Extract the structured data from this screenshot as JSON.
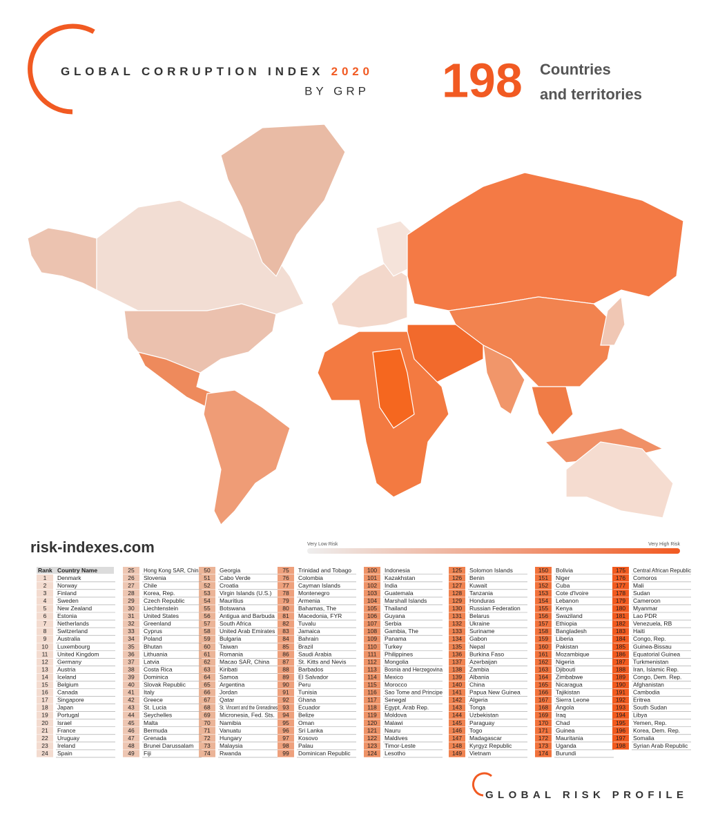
{
  "header": {
    "title": "GLOBAL CORRUPTION INDEX",
    "year": "2020",
    "subtitle": "BY GRP",
    "count": 198,
    "count_label": [
      "Countries",
      "and territories"
    ]
  },
  "website": "risk-indexes.com",
  "legend": {
    "low": "Very Low Risk",
    "high": "Very High Risk"
  },
  "table": {
    "header": [
      "Rank",
      "Country Name"
    ],
    "columns": [
      {
        "color": "#f3dbcf",
        "rows": [
          [
            1,
            "Denmark"
          ],
          [
            2,
            "Norway"
          ],
          [
            3,
            "Finland"
          ],
          [
            4,
            "Sweden"
          ],
          [
            5,
            "New Zealand"
          ],
          [
            6,
            "Estonia"
          ],
          [
            7,
            "Netherlands"
          ],
          [
            8,
            "Switzerland"
          ],
          [
            9,
            "Australia"
          ],
          [
            10,
            "Luxembourg"
          ],
          [
            11,
            "United Kingdom"
          ],
          [
            12,
            "Germany"
          ],
          [
            13,
            "Austria"
          ],
          [
            14,
            "Iceland"
          ],
          [
            15,
            "Belgium"
          ],
          [
            16,
            "Canada"
          ],
          [
            17,
            "Singapore"
          ],
          [
            18,
            "Japan"
          ],
          [
            19,
            "Portugal"
          ],
          [
            20,
            "Israel"
          ],
          [
            21,
            "France"
          ],
          [
            22,
            "Uruguay"
          ],
          [
            23,
            "Ireland"
          ],
          [
            24,
            "Spain"
          ]
        ]
      },
      {
        "color": "#eec6b2",
        "rows": [
          [
            25,
            "Hong Kong SAR, China"
          ],
          [
            26,
            "Slovenia"
          ],
          [
            27,
            "Chile"
          ],
          [
            28,
            "Korea, Rep."
          ],
          [
            29,
            "Czech Republic"
          ],
          [
            30,
            "Liechtenstein"
          ],
          [
            31,
            "United States"
          ],
          [
            32,
            "Greenland"
          ],
          [
            33,
            "Cyprus"
          ],
          [
            34,
            "Poland"
          ],
          [
            35,
            "Bhutan"
          ],
          [
            36,
            "Lithuania"
          ],
          [
            37,
            "Latvia"
          ],
          [
            38,
            "Costa Rica"
          ],
          [
            39,
            "Dominica"
          ],
          [
            40,
            "Slovak Republic"
          ],
          [
            41,
            "Italy"
          ],
          [
            42,
            "Greece"
          ],
          [
            43,
            "St. Lucia"
          ],
          [
            44,
            "Seychelles"
          ],
          [
            45,
            "Malta"
          ],
          [
            46,
            "Bermuda"
          ],
          [
            47,
            "Grenada"
          ],
          [
            48,
            "Brunei Darussalam"
          ],
          [
            49,
            "Fiji"
          ]
        ]
      },
      {
        "color": "#ebb497",
        "rows": [
          [
            50,
            "Georgia"
          ],
          [
            51,
            "Cabo Verde"
          ],
          [
            52,
            "Croatia"
          ],
          [
            53,
            "Virgin Islands (U.S.)"
          ],
          [
            54,
            "Mauritius"
          ],
          [
            55,
            "Botswana"
          ],
          [
            56,
            "Antigua and Barbuda"
          ],
          [
            57,
            "South Africa"
          ],
          [
            58,
            "United Arab Emirates"
          ],
          [
            59,
            "Bulgaria"
          ],
          [
            60,
            "Taiwan"
          ],
          [
            61,
            "Romania"
          ],
          [
            62,
            "Macao SAR, China"
          ],
          [
            63,
            "Kiribati"
          ],
          [
            64,
            "Samoa"
          ],
          [
            65,
            "Argentina"
          ],
          [
            66,
            "Jordan"
          ],
          [
            67,
            "Qatar"
          ],
          [
            68,
            "St. Vincent and the Grenadines"
          ],
          [
            69,
            "Micronesia, Fed. Sts."
          ],
          [
            70,
            "Namibia"
          ],
          [
            71,
            "Vanuatu"
          ],
          [
            72,
            "Hungary"
          ],
          [
            73,
            "Malaysia"
          ],
          [
            74,
            "Rwanda"
          ]
        ]
      },
      {
        "color": "#eea07c",
        "rows": [
          [
            75,
            "Trinidad and Tobago"
          ],
          [
            76,
            "Colombia"
          ],
          [
            77,
            "Cayman Islands"
          ],
          [
            78,
            "Montenegro"
          ],
          [
            79,
            "Armenia"
          ],
          [
            80,
            "Bahamas, The"
          ],
          [
            81,
            "Macedonia, FYR"
          ],
          [
            82,
            "Tuvalu"
          ],
          [
            83,
            "Jamaica"
          ],
          [
            84,
            "Bahrain"
          ],
          [
            85,
            "Brazil"
          ],
          [
            86,
            "Saudi Arabia"
          ],
          [
            87,
            "St. Kitts and Nevis"
          ],
          [
            88,
            "Barbados"
          ],
          [
            89,
            "El Salvador"
          ],
          [
            90,
            "Peru"
          ],
          [
            91,
            "Tunisia"
          ],
          [
            92,
            "Ghana"
          ],
          [
            93,
            "Ecuador"
          ],
          [
            94,
            "Belize"
          ],
          [
            95,
            "Oman"
          ],
          [
            96,
            "Sri Lanka"
          ],
          [
            97,
            "Kosovo"
          ],
          [
            98,
            "Palau"
          ],
          [
            99,
            "Dominican Republic"
          ]
        ]
      },
      {
        "color": "#ee9266",
        "rows": [
          [
            100,
            "Indonesia"
          ],
          [
            101,
            "Kazakhstan"
          ],
          [
            102,
            "India"
          ],
          [
            103,
            "Guatemala"
          ],
          [
            104,
            "Marshall Islands"
          ],
          [
            105,
            "Thailand"
          ],
          [
            106,
            "Guyana"
          ],
          [
            107,
            "Serbia"
          ],
          [
            108,
            "Gambia, The"
          ],
          [
            109,
            "Panama"
          ],
          [
            110,
            "Turkey"
          ],
          [
            111,
            "Philippines"
          ],
          [
            112,
            "Mongolia"
          ],
          [
            113,
            "Bosnia and Herzegovina"
          ],
          [
            114,
            "Mexico"
          ],
          [
            115,
            "Morocco"
          ],
          [
            116,
            "Sao Tome and Principe"
          ],
          [
            117,
            "Senegal"
          ],
          [
            118,
            "Egypt, Arab Rep."
          ],
          [
            119,
            "Moldova"
          ],
          [
            120,
            "Malawi"
          ],
          [
            121,
            "Nauru"
          ],
          [
            122,
            "Maldives"
          ],
          [
            123,
            "Timor-Leste"
          ],
          [
            124,
            "Lesotho"
          ]
        ]
      },
      {
        "color": "#f08350",
        "rows": [
          [
            125,
            "Solomon Islands"
          ],
          [
            126,
            "Benin"
          ],
          [
            127,
            "Kuwait"
          ],
          [
            128,
            "Tanzania"
          ],
          [
            129,
            "Honduras"
          ],
          [
            130,
            "Russian Federation"
          ],
          [
            131,
            "Belarus"
          ],
          [
            132,
            "Ukraine"
          ],
          [
            133,
            "Suriname"
          ],
          [
            134,
            "Gabon"
          ],
          [
            135,
            "Nepal"
          ],
          [
            136,
            "Burkina Faso"
          ],
          [
            137,
            "Azerbaijan"
          ],
          [
            138,
            "Zambia"
          ],
          [
            139,
            "Albania"
          ],
          [
            140,
            "China"
          ],
          [
            141,
            "Papua New Guinea"
          ],
          [
            142,
            "Algeria"
          ],
          [
            143,
            "Tonga"
          ],
          [
            144,
            "Uzbekistan"
          ],
          [
            145,
            "Paraguay"
          ],
          [
            146,
            "Togo"
          ],
          [
            147,
            "Madagascar"
          ],
          [
            148,
            "Kyrgyz Republic"
          ],
          [
            149,
            "Vietnam"
          ]
        ]
      },
      {
        "color": "#f2723b",
        "rows": [
          [
            150,
            "Bolivia"
          ],
          [
            151,
            "Niger"
          ],
          [
            152,
            "Cuba"
          ],
          [
            153,
            "Cote d'Ivoire"
          ],
          [
            154,
            "Lebanon"
          ],
          [
            155,
            "Kenya"
          ],
          [
            156,
            "Swaziland"
          ],
          [
            157,
            "Ethiopia"
          ],
          [
            158,
            "Bangladesh"
          ],
          [
            159,
            "Liberia"
          ],
          [
            160,
            "Pakistan"
          ],
          [
            161,
            "Mozambique"
          ],
          [
            162,
            "Nigeria"
          ],
          [
            163,
            "Djibouti"
          ],
          [
            164,
            "Zimbabwe"
          ],
          [
            165,
            "Nicaragua"
          ],
          [
            166,
            "Tajikistan"
          ],
          [
            167,
            "Sierra Leone"
          ],
          [
            168,
            "Angola"
          ],
          [
            169,
            "Iraq"
          ],
          [
            170,
            "Chad"
          ],
          [
            171,
            "Guinea"
          ],
          [
            172,
            "Mauritania"
          ],
          [
            173,
            "Uganda"
          ],
          [
            174,
            "Burundi"
          ]
        ]
      },
      {
        "color": "#f25a1e",
        "rows": [
          [
            175,
            "Central African Republic"
          ],
          [
            176,
            "Comoros"
          ],
          [
            177,
            "Mali"
          ],
          [
            178,
            "Sudan"
          ],
          [
            179,
            "Cameroon"
          ],
          [
            180,
            "Myanmar"
          ],
          [
            181,
            "Lao PDR"
          ],
          [
            182,
            "Venezuela, RB"
          ],
          [
            183,
            "Haiti"
          ],
          [
            184,
            "Congo, Rep."
          ],
          [
            185,
            "Guinea-Bissau"
          ],
          [
            186,
            "Equatorial Guinea"
          ],
          [
            187,
            "Turkmenistan"
          ],
          [
            188,
            "Iran, Islamic Rep."
          ],
          [
            189,
            "Congo, Dem. Rep."
          ],
          [
            190,
            "Afghanistan"
          ],
          [
            191,
            "Cambodia"
          ],
          [
            192,
            "Eritrea"
          ],
          [
            193,
            "South Sudan"
          ],
          [
            194,
            "Libya"
          ],
          [
            195,
            "Yemen, Rep."
          ],
          [
            196,
            "Korea, Dem. Rep."
          ],
          [
            197,
            "Somalia"
          ],
          [
            198,
            "Syrian Arab Republic"
          ]
        ]
      }
    ]
  },
  "footer": "GLOBAL RISK PROFILE"
}
